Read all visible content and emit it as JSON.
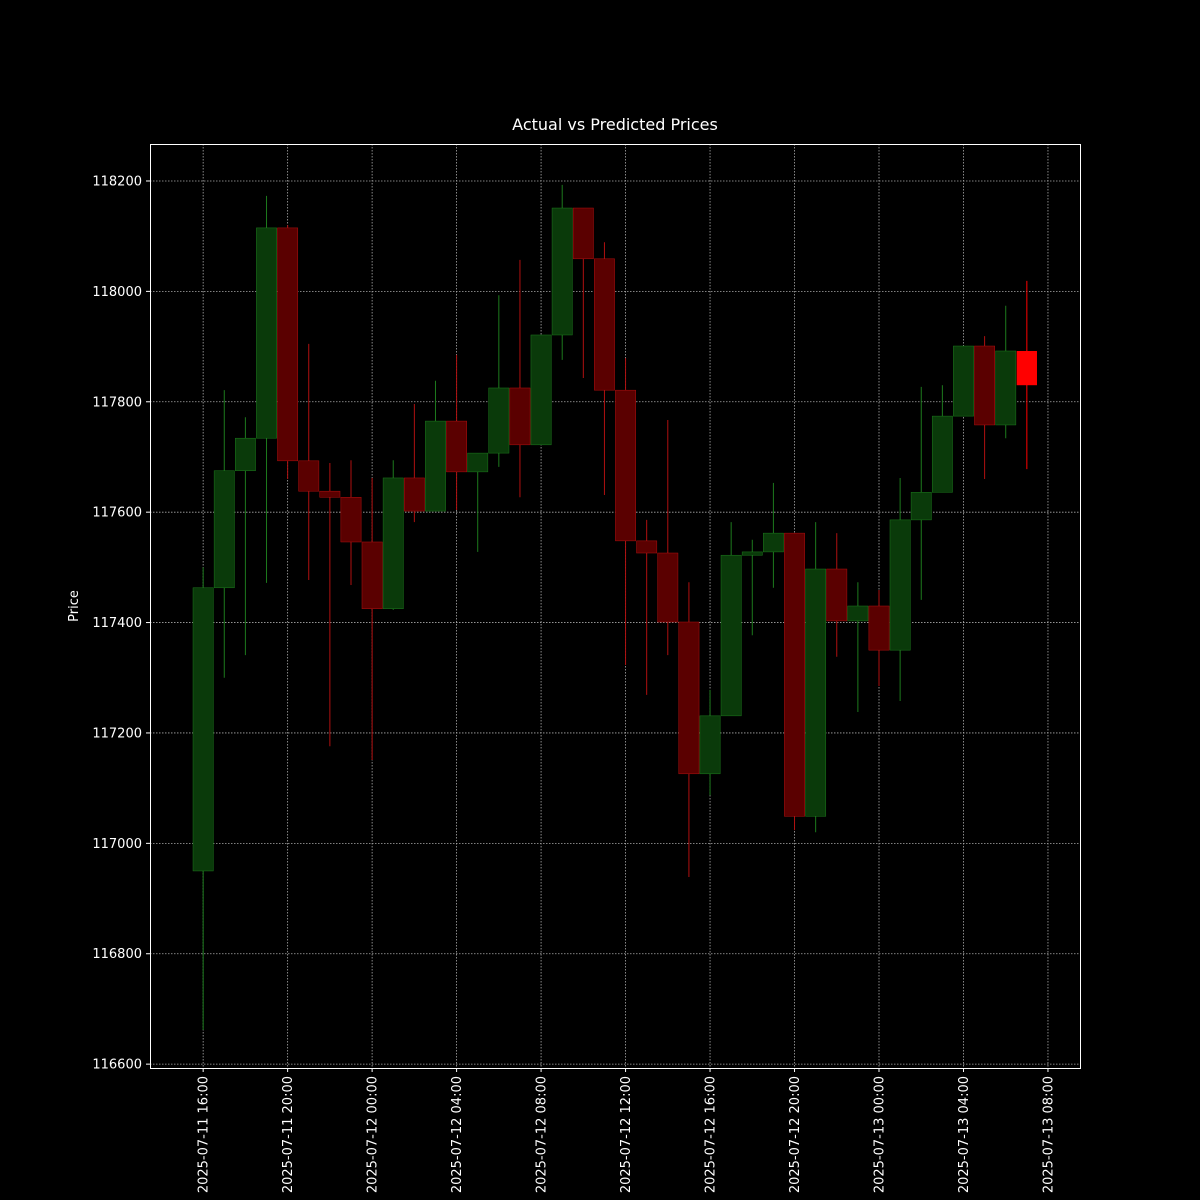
{
  "chart_data": {
    "type": "candlestick",
    "title": "Actual vs Predicted Prices",
    "y_label": "Price",
    "up_color": "#0a3a0a",
    "up_edge": "#1d7a1d",
    "down_color": "#5a0000",
    "down_edge": "#b01010",
    "grid": true,
    "x": [
      "2025-07-11 16:00",
      "2025-07-11 17:00",
      "2025-07-11 18:00",
      "2025-07-11 19:00",
      "2025-07-11 20:00",
      "2025-07-11 21:00",
      "2025-07-11 22:00",
      "2025-07-11 23:00",
      "2025-07-12 00:00",
      "2025-07-12 01:00",
      "2025-07-12 02:00",
      "2025-07-12 03:00",
      "2025-07-12 04:00",
      "2025-07-12 05:00",
      "2025-07-12 06:00",
      "2025-07-12 07:00",
      "2025-07-12 08:00",
      "2025-07-12 09:00",
      "2025-07-12 10:00",
      "2025-07-12 11:00",
      "2025-07-12 12:00",
      "2025-07-12 13:00",
      "2025-07-12 14:00",
      "2025-07-12 15:00",
      "2025-07-12 16:00",
      "2025-07-12 17:00",
      "2025-07-12 18:00",
      "2025-07-12 19:00",
      "2025-07-12 20:00",
      "2025-07-12 21:00",
      "2025-07-12 22:00",
      "2025-07-12 23:00",
      "2025-07-13 00:00",
      "2025-07-13 01:00",
      "2025-07-13 02:00",
      "2025-07-13 03:00",
      "2025-07-13 04:00",
      "2025-07-13 05:00",
      "2025-07-13 06:00"
    ],
    "open": [
      116950,
      117463,
      117675,
      117734,
      118115,
      117693,
      117638,
      117627,
      117546,
      117425,
      117662,
      117602,
      117765,
      117673,
      117707,
      117825,
      117722,
      117921,
      118151,
      118059,
      117821,
      117548,
      117526,
      117401,
      117126,
      117231,
      117522,
      117528,
      117562,
      117049,
      117497,
      117403,
      117430,
      117350,
      117586,
      117636,
      117774,
      117901,
      117758
    ],
    "high": [
      117500,
      117821,
      117772,
      118173,
      118120,
      117905,
      117689,
      117694,
      117662,
      117694,
      117796,
      117838,
      117885,
      117707,
      117993,
      118057,
      117921,
      118193,
      118151,
      118089,
      117879,
      117586,
      117767,
      117473,
      117278,
      117582,
      117550,
      117653,
      117562,
      117582,
      117562,
      117473,
      117459,
      117662,
      117827,
      117830,
      117901,
      117919,
      117974
    ],
    "low": [
      116662,
      117300,
      117341,
      117472,
      117660,
      117477,
      117176,
      117468,
      117151,
      117423,
      117582,
      117602,
      117604,
      117528,
      117682,
      117627,
      117722,
      117876,
      117843,
      117631,
      117323,
      117269,
      117341,
      116939,
      117087,
      117231,
      117377,
      117463,
      117024,
      117020,
      117338,
      117238,
      117285,
      117258,
      117441,
      117636,
      117774,
      117660,
      117734
    ],
    "close": [
      117463,
      117675,
      117734,
      118115,
      117693,
      117638,
      117627,
      117546,
      117425,
      117662,
      117602,
      117765,
      117673,
      117707,
      117825,
      117722,
      117921,
      118151,
      118059,
      117821,
      117548,
      117526,
      117401,
      117126,
      117231,
      117522,
      117528,
      117562,
      117049,
      117497,
      117403,
      117430,
      117350,
      117586,
      117636,
      117774,
      117901,
      117758,
      117892
    ],
    "predicted": {
      "x": "2025-07-13 07:00",
      "open": 117892,
      "high": 118019,
      "low": 117678,
      "close": 117830,
      "color": "#ff0000"
    },
    "xlim": [
      "2025-07-11 13:29",
      "2025-07-13 09:31"
    ],
    "xticks": [
      "2025-07-11 16:00",
      "2025-07-11 20:00",
      "2025-07-12 00:00",
      "2025-07-12 04:00",
      "2025-07-12 08:00",
      "2025-07-12 12:00",
      "2025-07-12 16:00",
      "2025-07-12 20:00",
      "2025-07-13 00:00",
      "2025-07-13 04:00",
      "2025-07-13 08:00"
    ],
    "ylim": [
      116593,
      118267
    ],
    "yticks": [
      116600,
      116800,
      117000,
      117200,
      117400,
      117600,
      117800,
      118000,
      118200
    ]
  }
}
